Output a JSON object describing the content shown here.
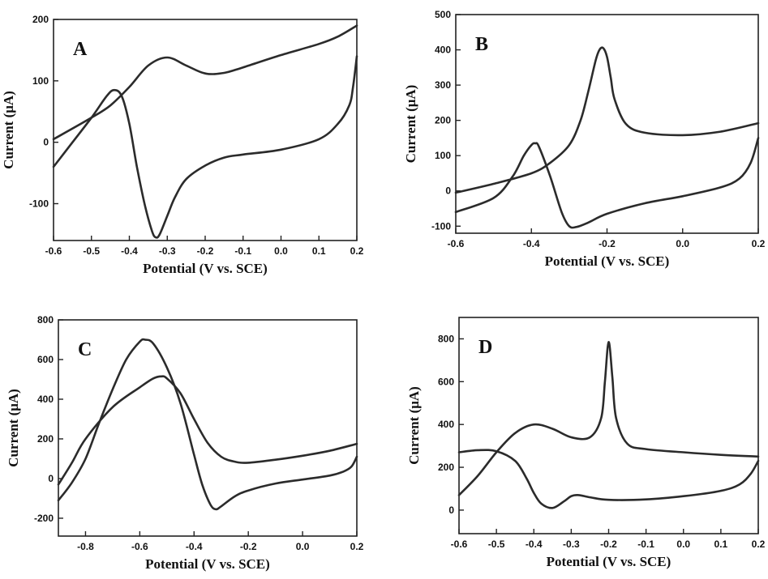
{
  "chart_data": [
    {
      "panel": "A",
      "type": "line",
      "xlabel": "Potential (V vs. SCE)",
      "ylabel": "Current (μA)",
      "xlim": [
        -0.6,
        0.2
      ],
      "ylim": [
        -160,
        200
      ],
      "xticks": [
        "-0.6",
        "-0.5",
        "-0.4",
        "-0.3",
        "-0.2",
        "-0.1",
        "0.0",
        "0.1",
        "0.2"
      ],
      "yticks": [
        "-100",
        "0",
        "100",
        "200"
      ],
      "series": [
        {
          "x": [
            -0.6,
            -0.55,
            -0.5,
            -0.46,
            -0.44,
            -0.42,
            -0.4,
            -0.38,
            -0.36,
            -0.34,
            -0.33,
            -0.32,
            -0.3,
            -0.28,
            -0.25,
            -0.2,
            -0.15,
            -0.1,
            0.0,
            0.1,
            0.15,
            0.18,
            0.19,
            0.2
          ],
          "y": [
            -40,
            0,
            40,
            75,
            85,
            75,
            30,
            -40,
            -100,
            -145,
            -155,
            -150,
            -120,
            -90,
            -60,
            -38,
            -25,
            -20,
            -12,
            5,
            30,
            60,
            90,
            140
          ]
        },
        {
          "x": [
            -0.6,
            -0.5,
            -0.45,
            -0.4,
            -0.35,
            -0.3,
            -0.25,
            -0.2,
            -0.15,
            -0.1,
            0.0,
            0.1,
            0.15,
            0.2
          ],
          "y": [
            5,
            40,
            60,
            90,
            125,
            138,
            125,
            112,
            113,
            122,
            142,
            160,
            172,
            190
          ]
        }
      ]
    },
    {
      "panel": "B",
      "type": "line",
      "xlabel": "Potential (V vs. SCE)",
      "ylabel": "Current (μA)",
      "xlim": [
        -0.6,
        0.2
      ],
      "ylim": [
        -120,
        500
      ],
      "xticks": [
        "-0.6",
        "-0.4",
        "-0.2",
        "0.0",
        "0.2"
      ],
      "yticks": [
        "-100",
        "0",
        "100",
        "200",
        "300",
        "400",
        "500"
      ],
      "series": [
        {
          "x": [
            -0.6,
            -0.5,
            -0.45,
            -0.42,
            -0.4,
            -0.39,
            -0.38,
            -0.35,
            -0.32,
            -0.3,
            -0.28,
            -0.25,
            -0.2,
            -0.1,
            0.0,
            0.1,
            0.15,
            0.18,
            0.2
          ],
          "y": [
            -60,
            -20,
            40,
            100,
            130,
            135,
            125,
            40,
            -60,
            -100,
            -102,
            -90,
            -65,
            -35,
            -15,
            10,
            35,
            80,
            150
          ]
        },
        {
          "x": [
            -0.6,
            -0.5,
            -0.4,
            -0.35,
            -0.3,
            -0.27,
            -0.25,
            -0.23,
            -0.22,
            -0.21,
            -0.2,
            -0.19,
            -0.18,
            -0.15,
            -0.1,
            0.0,
            0.1,
            0.2
          ],
          "y": [
            -5,
            20,
            50,
            80,
            130,
            200,
            280,
            370,
            400,
            405,
            380,
            320,
            260,
            190,
            165,
            158,
            168,
            192
          ]
        }
      ]
    },
    {
      "panel": "C",
      "type": "line",
      "xlabel": "Potential (V vs. SCE)",
      "ylabel": "Current (μA)",
      "xlim": [
        -0.9,
        0.2
      ],
      "ylim": [
        -290,
        800
      ],
      "xticks": [
        "-0.8",
        "-0.6",
        "-0.4",
        "-0.2",
        "0.0",
        "0.2"
      ],
      "yticks": [
        "-200",
        "0",
        "200",
        "400",
        "600",
        "800"
      ],
      "series": [
        {
          "x": [
            -0.9,
            -0.85,
            -0.8,
            -0.75,
            -0.7,
            -0.65,
            -0.6,
            -0.58,
            -0.55,
            -0.5,
            -0.45,
            -0.4,
            -0.37,
            -0.34,
            -0.32,
            -0.3,
            -0.25,
            -0.2,
            -0.1,
            0.0,
            0.1,
            0.15,
            0.18,
            0.2
          ],
          "y": [
            -110,
            -20,
            100,
            280,
            450,
            600,
            690,
            700,
            680,
            560,
            380,
            120,
            -30,
            -130,
            -155,
            -140,
            -90,
            -60,
            -25,
            -5,
            15,
            35,
            60,
            110
          ]
        },
        {
          "x": [
            -0.9,
            -0.85,
            -0.8,
            -0.7,
            -0.6,
            -0.55,
            -0.52,
            -0.5,
            -0.45,
            -0.4,
            -0.35,
            -0.3,
            -0.25,
            -0.2,
            -0.1,
            0.0,
            0.1,
            0.2
          ],
          "y": [
            -30,
            80,
            200,
            360,
            460,
            505,
            515,
            505,
            430,
            300,
            180,
            110,
            85,
            80,
            95,
            115,
            140,
            175
          ]
        }
      ]
    },
    {
      "panel": "D",
      "type": "line",
      "xlabel": "Potential (V vs. SCE)",
      "ylabel": "Current (μA)",
      "xlim": [
        -0.6,
        0.2
      ],
      "ylim": [
        -110,
        900
      ],
      "xticks": [
        "-0.6",
        "-0.5",
        "-0.4",
        "-0.3",
        "-0.2",
        "-0.1",
        "0.0",
        "0.1",
        "0.2"
      ],
      "yticks": [
        "0",
        "200",
        "400",
        "600",
        "800"
      ],
      "series": [
        {
          "x": [
            -0.6,
            -0.55,
            -0.5,
            -0.45,
            -0.42,
            -0.4,
            -0.38,
            -0.35,
            -0.32,
            -0.3,
            -0.28,
            -0.25,
            -0.2,
            -0.1,
            0.0,
            0.1,
            0.15,
            0.18,
            0.2
          ],
          "y": [
            270,
            280,
            275,
            230,
            150,
            80,
            30,
            10,
            40,
            65,
            70,
            60,
            48,
            50,
            65,
            90,
            120,
            170,
            230
          ]
        },
        {
          "x": [
            -0.6,
            -0.55,
            -0.5,
            -0.45,
            -0.4,
            -0.35,
            -0.3,
            -0.25,
            -0.22,
            -0.21,
            -0.2,
            -0.19,
            -0.18,
            -0.15,
            -0.1,
            0.0,
            0.1,
            0.2
          ],
          "y": [
            70,
            160,
            270,
            360,
            400,
            380,
            340,
            340,
            430,
            600,
            785,
            620,
            430,
            310,
            285,
            270,
            258,
            250
          ]
        }
      ]
    }
  ]
}
